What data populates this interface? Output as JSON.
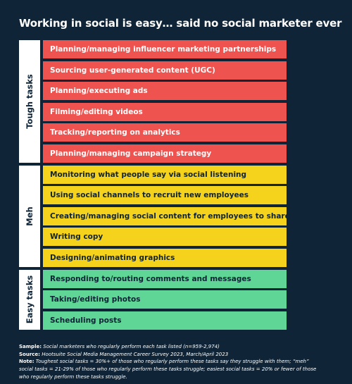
{
  "title": "Working in social is easy… said no social marketer ever",
  "colors": {
    "background": "#0f2436",
    "tough": "#ef5350",
    "meh": "#f5d21c",
    "easy": "#5fd596",
    "label_panel": "#ffffff"
  },
  "chart_data": {
    "type": "table",
    "title": "Working in social is easy… said no social marketer ever",
    "groups": [
      {
        "name": "Tough tasks",
        "color": "#ef5350",
        "text_color": "#ffffff",
        "items": [
          "Planning/managing influencer marketing partnerships",
          "Sourcing user-generated content (UGC)",
          "Planning/executing ads",
          "Filming/editing videos",
          "Tracking/reporting on analytics",
          "Planning/managing campaign strategy"
        ]
      },
      {
        "name": "Meh",
        "color": "#f5d21c",
        "text_color": "#0f2436",
        "items": [
          "Monitoring what people say via social listening",
          "Using social channels to recruit new employees",
          "Creating/managing social content for employees to share",
          "Writing copy",
          "Designing/animating graphics"
        ]
      },
      {
        "name": "Easy tasks",
        "color": "#5fd596",
        "text_color": "#0f2436",
        "items": [
          "Responding to/routing comments and messages",
          "Taking/editing photos",
          "Scheduling posts"
        ]
      }
    ]
  },
  "notes": {
    "sample_label": "Sample:",
    "sample_text": "Social marketers who regularly perform each task listed (n=959-2,974)",
    "source_label": "Source:",
    "source_text": "Hootsuite Social Media Management Career Survey 2023, March/April 2023",
    "note_label": "Note:",
    "note_line1": "Toughest social tasks = 30%+ of those who regularly perform these tasks say they struggle with them; “meh”",
    "note_line2": "social tasks = 21-29% of those who regularly perform these tasks struggle; easiest social tasks = 20% or fewer of those",
    "note_line3": "who regularly perform these tasks struggle."
  }
}
